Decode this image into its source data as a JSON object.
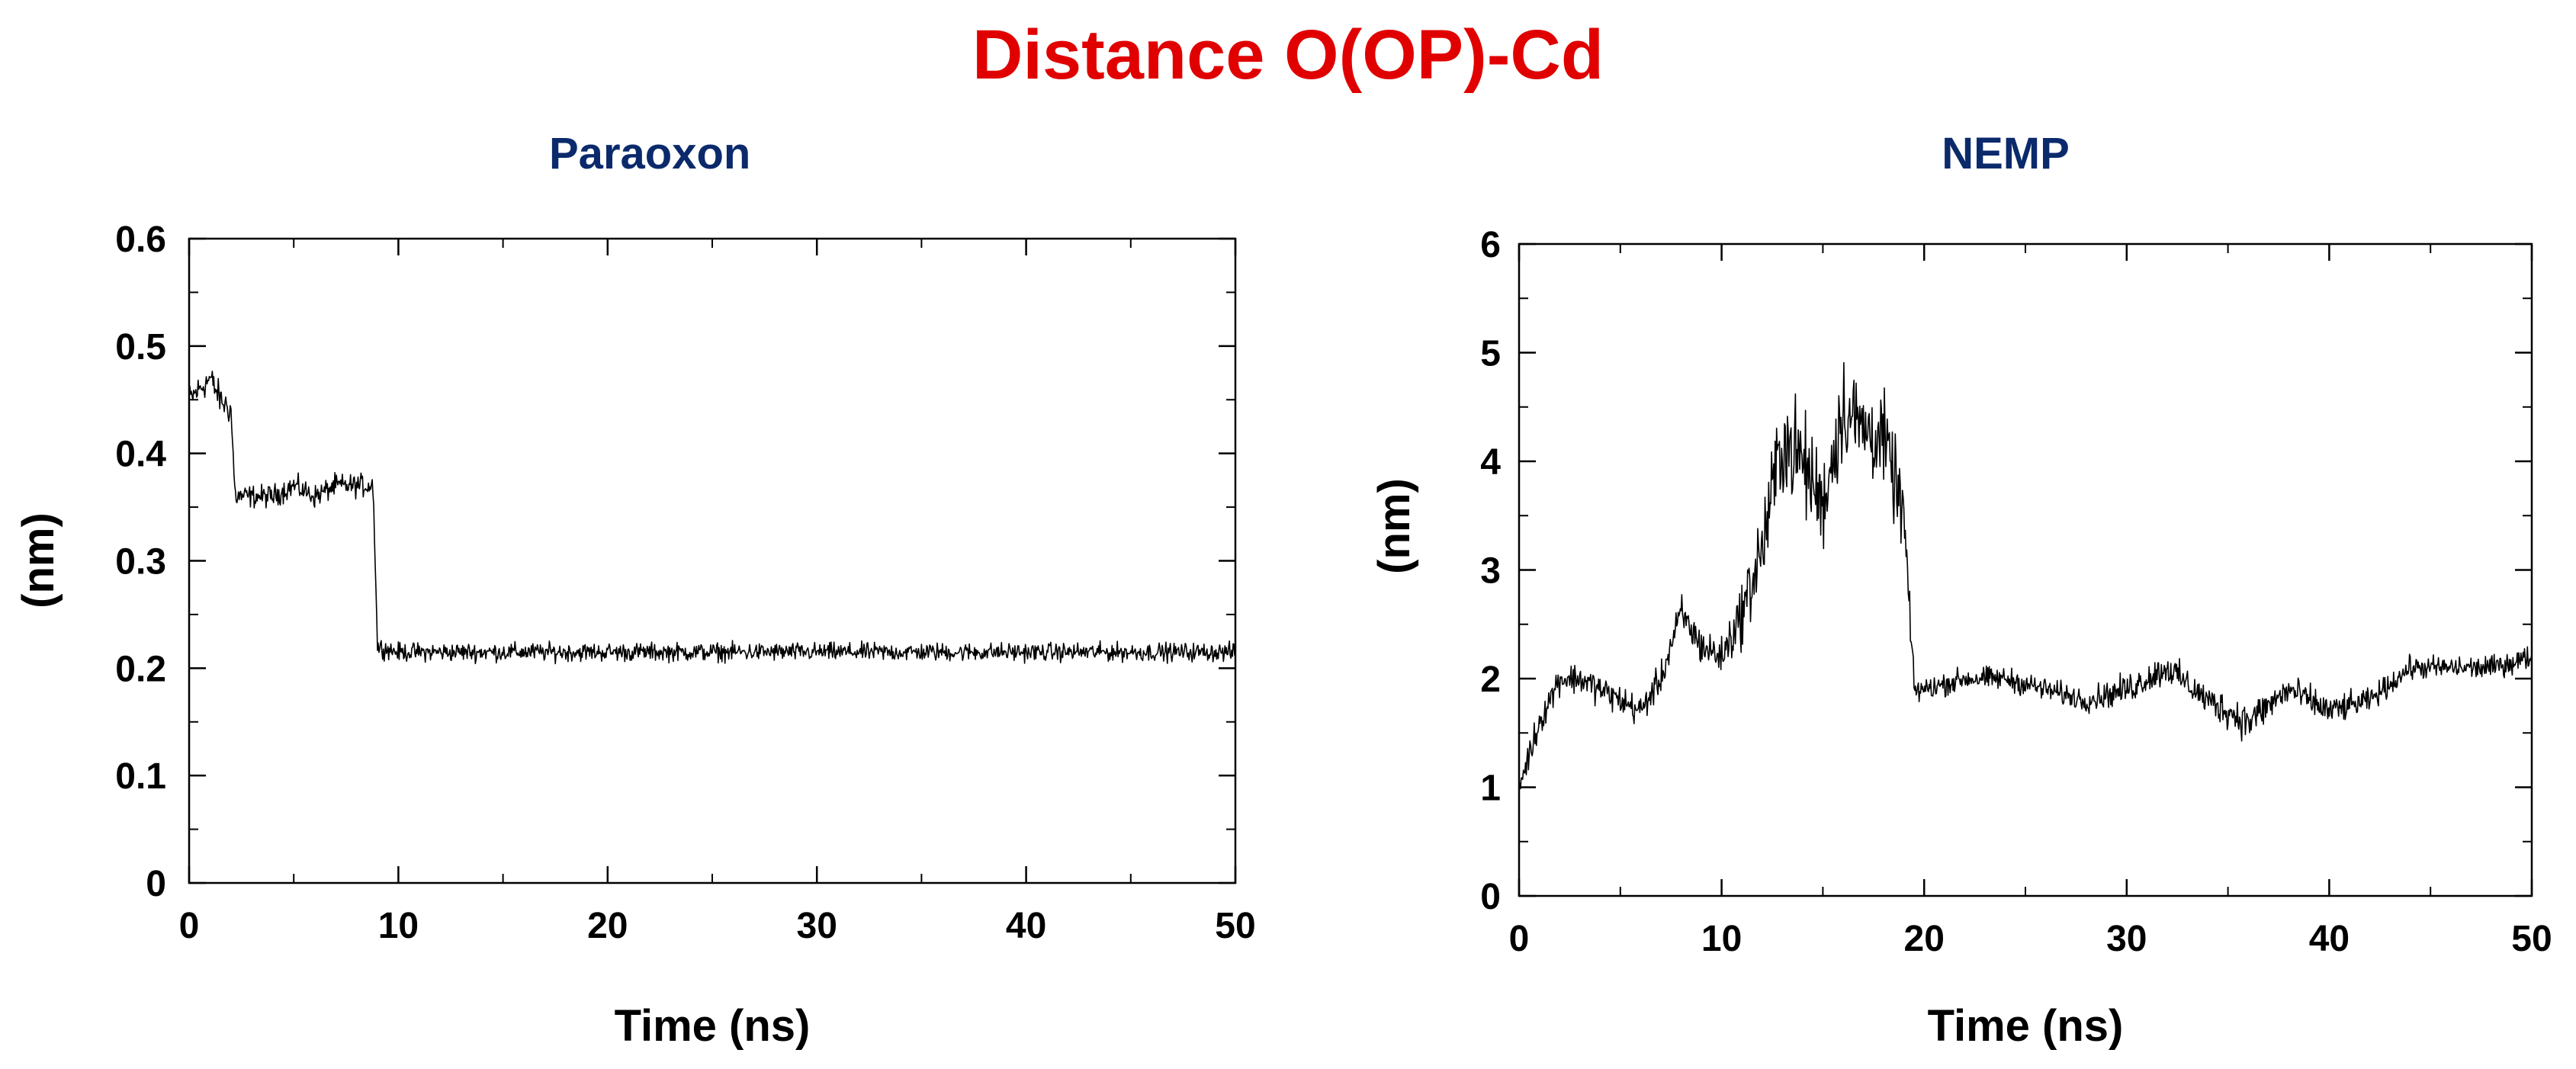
{
  "main_title": "Distance O(OP)-Cd",
  "colors": {
    "main_title": "#e00000",
    "panel_title": "#0b2a6b",
    "trace": "#000000",
    "axes": "#000000"
  },
  "chart_data": [
    {
      "type": "line",
      "title": "Paraoxon",
      "xlabel": "Time (ns)",
      "ylabel": "(nm)",
      "xlim": [
        0,
        50
      ],
      "ylim": [
        0,
        0.6
      ],
      "xticks": [
        0,
        10,
        20,
        30,
        40,
        50
      ],
      "xtick_labels": [
        "0",
        "10",
        "20",
        "30",
        "40",
        "50"
      ],
      "yticks": [
        0,
        0.1,
        0.2,
        0.3,
        0.4,
        0.5,
        0.6
      ],
      "ytick_labels": [
        "0",
        "0.1",
        "0.2",
        "0.3",
        "0.4",
        "0.5",
        "0.6"
      ],
      "series": [
        {
          "name": "O(OP)-Cd distance",
          "x": [
            0,
            0.5,
            1.0,
            1.5,
            2.0,
            2.2,
            3,
            4,
            5,
            6,
            7,
            8,
            8.8,
            9.0,
            10,
            15,
            20,
            25,
            30,
            35,
            40,
            45,
            50
          ],
          "y": [
            0.45,
            0.46,
            0.47,
            0.45,
            0.44,
            0.36,
            0.36,
            0.36,
            0.37,
            0.36,
            0.37,
            0.37,
            0.37,
            0.22,
            0.215,
            0.215,
            0.215,
            0.215,
            0.215,
            0.215,
            0.215,
            0.215,
            0.215
          ],
          "noise": [
            0.02,
            0.02,
            0.02,
            0.02,
            0.02,
            0.015,
            0.015,
            0.015,
            0.015,
            0.015,
            0.015,
            0.015,
            0.015,
            0.012,
            0.012,
            0.012,
            0.012,
            0.012,
            0.012,
            0.012,
            0.012,
            0.012,
            0.012
          ]
        }
      ]
    },
    {
      "type": "line",
      "title": "NEMP",
      "xlabel": "Time (ns)",
      "ylabel": "(nm)",
      "xlim": [
        0,
        50
      ],
      "ylim": [
        0,
        6
      ],
      "xticks": [
        0,
        10,
        20,
        30,
        40,
        50
      ],
      "xtick_labels": [
        "0",
        "10",
        "20",
        "30",
        "40",
        "50"
      ],
      "yticks": [
        0,
        1,
        2,
        3,
        4,
        5,
        6
      ],
      "ytick_labels": [
        "0",
        "1",
        "2",
        "3",
        "4",
        "5",
        "6"
      ],
      "series": [
        {
          "name": "O(OP)-Cd distance",
          "x": [
            0,
            0.5,
            1.0,
            2,
            3,
            4,
            5,
            6,
            7,
            8,
            9,
            10,
            11,
            12,
            13,
            14,
            15,
            16,
            17,
            18,
            19,
            19.5,
            20,
            22,
            24,
            26,
            28,
            30,
            32,
            34,
            36,
            38,
            40,
            42,
            44,
            46,
            48,
            50
          ],
          "y": [
            1.0,
            1.3,
            1.6,
            2.0,
            2.0,
            1.9,
            1.8,
            1.7,
            2.0,
            2.6,
            2.3,
            2.2,
            2.6,
            3.2,
            4.2,
            4.0,
            3.6,
            4.5,
            4.3,
            4.2,
            3.5,
            1.9,
            1.9,
            2.0,
            2.0,
            1.9,
            1.8,
            1.9,
            2.1,
            1.8,
            1.6,
            1.9,
            1.7,
            1.8,
            2.1,
            2.1,
            2.1,
            2.2
          ],
          "noise": [
            0.15,
            0.2,
            0.2,
            0.2,
            0.2,
            0.2,
            0.2,
            0.2,
            0.2,
            0.25,
            0.25,
            0.25,
            0.4,
            0.6,
            0.7,
            0.7,
            0.6,
            0.7,
            0.6,
            0.6,
            0.5,
            0.2,
            0.15,
            0.15,
            0.15,
            0.15,
            0.15,
            0.2,
            0.2,
            0.2,
            0.25,
            0.2,
            0.2,
            0.15,
            0.15,
            0.15,
            0.15,
            0.15
          ]
        }
      ]
    }
  ]
}
